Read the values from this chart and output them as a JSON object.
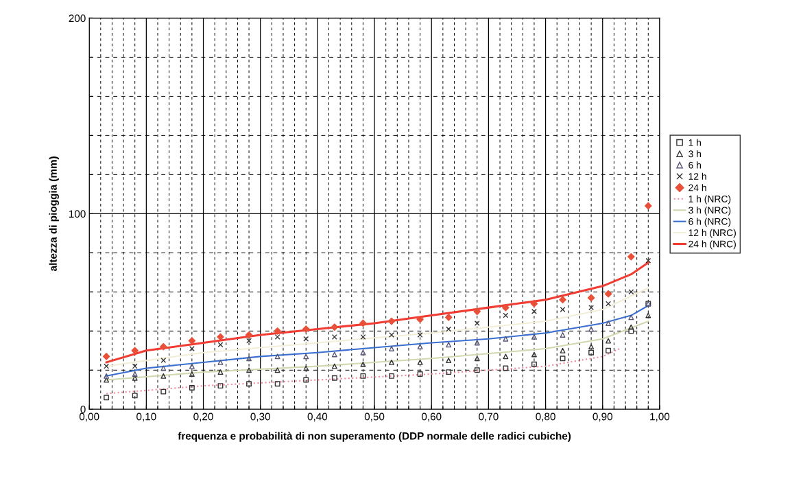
{
  "chart_data": {
    "type": "scatter",
    "xlabel": "frequenza e probabilità di non superamento (DDP normale delle radici cubiche)",
    "ylabel": "altezza di pioggia (mm)",
    "xlim": [
      0,
      1
    ],
    "ylim": [
      0,
      200
    ],
    "xticks": [
      {
        "value": 0,
        "label": "0,00"
      },
      {
        "value": 0.02,
        "label": null
      },
      {
        "value": 0.04,
        "label": null
      },
      {
        "value": 0.06,
        "label": null
      },
      {
        "value": 0.08,
        "label": null
      },
      {
        "value": 0.1,
        "label": "0,10"
      },
      {
        "value": 0.12,
        "label": null
      },
      {
        "value": 0.14,
        "label": null
      },
      {
        "value": 0.16,
        "label": null
      },
      {
        "value": 0.18,
        "label": null
      },
      {
        "value": 0.2,
        "label": "0,20"
      },
      {
        "value": 0.22,
        "label": null
      },
      {
        "value": 0.24,
        "label": null
      },
      {
        "value": 0.26,
        "label": null
      },
      {
        "value": 0.28,
        "label": null
      },
      {
        "value": 0.3,
        "label": "0,30"
      },
      {
        "value": 0.32,
        "label": null
      },
      {
        "value": 0.34,
        "label": null
      },
      {
        "value": 0.36,
        "label": null
      },
      {
        "value": 0.38,
        "label": null
      },
      {
        "value": 0.4,
        "label": "0,40"
      },
      {
        "value": 0.42,
        "label": null
      },
      {
        "value": 0.44,
        "label": null
      },
      {
        "value": 0.46,
        "label": null
      },
      {
        "value": 0.48,
        "label": null
      },
      {
        "value": 0.5,
        "label": "0,50"
      },
      {
        "value": 0.52,
        "label": null
      },
      {
        "value": 0.54,
        "label": null
      },
      {
        "value": 0.56,
        "label": null
      },
      {
        "value": 0.58,
        "label": null
      },
      {
        "value": 0.6,
        "label": "0,60"
      },
      {
        "value": 0.62,
        "label": null
      },
      {
        "value": 0.64,
        "label": null
      },
      {
        "value": 0.66,
        "label": null
      },
      {
        "value": 0.68,
        "label": null
      },
      {
        "value": 0.7,
        "label": "0,70"
      },
      {
        "value": 0.72,
        "label": null
      },
      {
        "value": 0.74,
        "label": null
      },
      {
        "value": 0.76,
        "label": null
      },
      {
        "value": 0.78,
        "label": null
      },
      {
        "value": 0.8,
        "label": "0,80"
      },
      {
        "value": 0.82,
        "label": null
      },
      {
        "value": 0.84,
        "label": null
      },
      {
        "value": 0.86,
        "label": null
      },
      {
        "value": 0.88,
        "label": null
      },
      {
        "value": 0.9,
        "label": "0,90"
      },
      {
        "value": 0.92,
        "label": null
      },
      {
        "value": 0.94,
        "label": null
      },
      {
        "value": 0.96,
        "label": null
      },
      {
        "value": 0.98,
        "label": null
      },
      {
        "value": 1,
        "label": "1,00"
      }
    ],
    "yticks": [
      0,
      {
        "value": 20,
        "label": null
      },
      {
        "value": 40,
        "label": null
      },
      {
        "value": 60,
        "label": null
      },
      {
        "value": 80,
        "label": null
      },
      100,
      {
        "value": 120,
        "label": null
      },
      {
        "value": 140,
        "label": null
      },
      {
        "value": 160,
        "label": null
      },
      {
        "value": 180,
        "label": null
      },
      200
    ],
    "grid": true,
    "legend": "right",
    "x": [
      0.03,
      0.08,
      0.13,
      0.18,
      0.23,
      0.28,
      0.33,
      0.38,
      0.43,
      0.48,
      0.53,
      0.58,
      0.63,
      0.68,
      0.73,
      0.78,
      0.83,
      0.88,
      0.91,
      0.95,
      0.98
    ],
    "series": [
      {
        "name": "1 h",
        "marker": "square",
        "color": "#333333",
        "values": [
          6,
          7,
          9,
          11,
          12,
          13,
          13,
          15,
          16,
          17,
          17,
          18,
          19,
          20,
          21,
          23,
          26,
          29,
          30,
          40,
          54
        ]
      },
      {
        "name": "3 h",
        "marker": "triangle",
        "color": "#333333",
        "values": [
          15,
          16,
          17,
          18,
          19,
          20,
          20,
          21,
          22,
          23,
          24,
          24,
          25,
          26,
          27,
          28,
          30,
          32,
          35,
          42,
          48
        ]
      },
      {
        "name": "6 h",
        "marker": "triangle",
        "color": "#555577",
        "values": [
          17,
          18,
          21,
          22,
          24,
          26,
          27,
          27,
          28,
          29,
          31,
          32,
          33,
          34,
          36,
          37,
          38,
          41,
          44,
          47,
          54
        ]
      },
      {
        "name": "12 h",
        "marker": "cross",
        "color": "#333333",
        "values": [
          22,
          22,
          25,
          31,
          33,
          35,
          37,
          36,
          37,
          37,
          38,
          38,
          41,
          44,
          48,
          50,
          51,
          52,
          54,
          60,
          76
        ]
      },
      {
        "name": "24 h",
        "marker": "diamond",
        "color": "#e8503a",
        "values": [
          27,
          30,
          32,
          35,
          37,
          38,
          40,
          41,
          42,
          44,
          45,
          46,
          47,
          50,
          52,
          54,
          56,
          57,
          59,
          78,
          104
        ]
      },
      {
        "name": "1 h (NRC)",
        "type": "line",
        "marker": "none",
        "line_style": "dotted",
        "color": "#f08aa0",
        "x": [
          0.03,
          0.2,
          0.4,
          0.6,
          0.8,
          0.9,
          0.93
        ],
        "values": [
          8,
          12,
          15,
          18,
          22,
          27,
          31
        ]
      },
      {
        "name": "3 h (NRC)",
        "type": "line",
        "marker": "none",
        "line_style": "solid",
        "color": "#d0d8b0",
        "x": [
          0.03,
          0.2,
          0.4,
          0.6,
          0.8,
          0.9,
          0.98
        ],
        "values": [
          15,
          19,
          22,
          26,
          31,
          36,
          45
        ]
      },
      {
        "name": "6 h (NRC)",
        "type": "line",
        "marker": "none",
        "line_style": "solid",
        "color": "#3a6fd0",
        "x": [
          0.03,
          0.1,
          0.2,
          0.3,
          0.4,
          0.5,
          0.6,
          0.7,
          0.8,
          0.9,
          0.95,
          0.98
        ],
        "values": [
          17,
          21,
          24,
          27,
          29,
          31.5,
          34,
          36,
          39,
          44,
          48,
          53
        ]
      },
      {
        "name": "12 h (NRC)",
        "type": "line",
        "marker": "none",
        "line_style": "solid",
        "color": "#f2eed8",
        "x": [
          0.03,
          0.2,
          0.4,
          0.6,
          0.8,
          0.9,
          0.98
        ],
        "values": [
          22,
          29,
          34,
          39,
          45,
          51,
          62
        ]
      },
      {
        "name": "24 h (NRC)",
        "type": "line",
        "marker": "none",
        "line_style": "solid",
        "color": "#f03c32",
        "x": [
          0.03,
          0.1,
          0.2,
          0.3,
          0.4,
          0.5,
          0.6,
          0.7,
          0.8,
          0.9,
          0.95,
          0.98
        ],
        "values": [
          24,
          30,
          34,
          38,
          41,
          44,
          48,
          52,
          56,
          63,
          69,
          75
        ]
      }
    ]
  }
}
